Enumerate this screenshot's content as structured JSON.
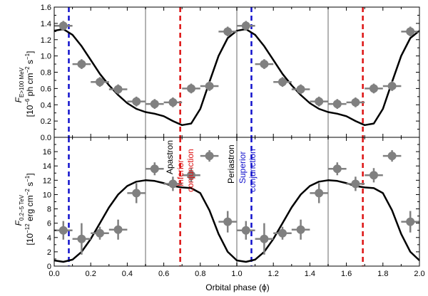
{
  "figure_title": "",
  "chart_data": [
    {
      "type": "scatter",
      "panel": "top",
      "ylabel_line1": "F",
      "ylabel_sub": "E>100 MeV",
      "ylabel_line2": "[10",
      "ylabel_exp": "−6",
      "ylabel_units": "ph cm",
      "ylabel_units_exp": "−2",
      "ylabel_units2": "s",
      "ylabel_units2_exp": "−1",
      "ylabel_close": "]",
      "xlim": [
        0.0,
        2.0
      ],
      "ylim": [
        0.0,
        1.6
      ],
      "yticks": [
        "0.0",
        "0.2",
        "0.4",
        "0.6",
        "0.8",
        "1.0",
        "1.2",
        "1.4",
        "1.6"
      ],
      "yticks_values": [
        0.0,
        0.2,
        0.4,
        0.6,
        0.8,
        1.0,
        1.2,
        1.4,
        1.6
      ],
      "points": [
        {
          "x": 0.05,
          "y": 1.37,
          "xerr": 0.05,
          "yerr": 0.06
        },
        {
          "x": 0.15,
          "y": 0.9,
          "xerr": 0.05,
          "yerr": 0.06
        },
        {
          "x": 0.25,
          "y": 0.68,
          "xerr": 0.05,
          "yerr": 0.06
        },
        {
          "x": 0.35,
          "y": 0.59,
          "xerr": 0.05,
          "yerr": 0.06
        },
        {
          "x": 0.45,
          "y": 0.44,
          "xerr": 0.05,
          "yerr": 0.06
        },
        {
          "x": 0.55,
          "y": 0.41,
          "xerr": 0.05,
          "yerr": 0.06
        },
        {
          "x": 0.65,
          "y": 0.43,
          "xerr": 0.05,
          "yerr": 0.06
        },
        {
          "x": 0.75,
          "y": 0.6,
          "xerr": 0.05,
          "yerr": 0.06
        },
        {
          "x": 0.85,
          "y": 0.63,
          "xerr": 0.05,
          "yerr": 0.06
        },
        {
          "x": 0.95,
          "y": 1.3,
          "xerr": 0.05,
          "yerr": 0.06
        },
        {
          "x": 1.05,
          "y": 1.37,
          "xerr": 0.05,
          "yerr": 0.06
        },
        {
          "x": 1.15,
          "y": 0.9,
          "xerr": 0.05,
          "yerr": 0.06
        },
        {
          "x": 1.25,
          "y": 0.68,
          "xerr": 0.05,
          "yerr": 0.06
        },
        {
          "x": 1.35,
          "y": 0.59,
          "xerr": 0.05,
          "yerr": 0.06
        },
        {
          "x": 1.45,
          "y": 0.44,
          "xerr": 0.05,
          "yerr": 0.06
        },
        {
          "x": 1.55,
          "y": 0.41,
          "xerr": 0.05,
          "yerr": 0.06
        },
        {
          "x": 1.65,
          "y": 0.43,
          "xerr": 0.05,
          "yerr": 0.06
        },
        {
          "x": 1.75,
          "y": 0.6,
          "xerr": 0.05,
          "yerr": 0.06
        },
        {
          "x": 1.85,
          "y": 0.63,
          "xerr": 0.05,
          "yerr": 0.06
        },
        {
          "x": 1.95,
          "y": 1.3,
          "xerr": 0.05,
          "yerr": 0.06
        }
      ],
      "curve": [
        {
          "x": 0.0,
          "y": 1.31
        },
        {
          "x": 0.05,
          "y": 1.33
        },
        {
          "x": 0.1,
          "y": 1.26
        },
        {
          "x": 0.15,
          "y": 1.12
        },
        {
          "x": 0.2,
          "y": 0.95
        },
        {
          "x": 0.25,
          "y": 0.78
        },
        {
          "x": 0.3,
          "y": 0.64
        },
        {
          "x": 0.35,
          "y": 0.52
        },
        {
          "x": 0.4,
          "y": 0.42
        },
        {
          "x": 0.45,
          "y": 0.35
        },
        {
          "x": 0.5,
          "y": 0.31
        },
        {
          "x": 0.55,
          "y": 0.29
        },
        {
          "x": 0.6,
          "y": 0.26
        },
        {
          "x": 0.65,
          "y": 0.2
        },
        {
          "x": 0.7,
          "y": 0.15
        },
        {
          "x": 0.75,
          "y": 0.17
        },
        {
          "x": 0.8,
          "y": 0.35
        },
        {
          "x": 0.85,
          "y": 0.68
        },
        {
          "x": 0.9,
          "y": 1.0
        },
        {
          "x": 0.95,
          "y": 1.22
        },
        {
          "x": 1.0,
          "y": 1.31
        },
        {
          "x": 1.05,
          "y": 1.33
        },
        {
          "x": 1.1,
          "y": 1.26
        },
        {
          "x": 1.15,
          "y": 1.12
        },
        {
          "x": 1.2,
          "y": 0.95
        },
        {
          "x": 1.25,
          "y": 0.78
        },
        {
          "x": 1.3,
          "y": 0.64
        },
        {
          "x": 1.35,
          "y": 0.52
        },
        {
          "x": 1.4,
          "y": 0.42
        },
        {
          "x": 1.45,
          "y": 0.35
        },
        {
          "x": 1.5,
          "y": 0.31
        },
        {
          "x": 1.55,
          "y": 0.29
        },
        {
          "x": 1.6,
          "y": 0.26
        },
        {
          "x": 1.65,
          "y": 0.2
        },
        {
          "x": 1.7,
          "y": 0.15
        },
        {
          "x": 1.75,
          "y": 0.17
        },
        {
          "x": 1.8,
          "y": 0.35
        },
        {
          "x": 1.85,
          "y": 0.68
        },
        {
          "x": 1.9,
          "y": 1.0
        },
        {
          "x": 1.95,
          "y": 1.22
        },
        {
          "x": 2.0,
          "y": 1.31
        }
      ]
    },
    {
      "type": "scatter",
      "panel": "bottom",
      "ylabel_line1": "F",
      "ylabel_sub": "0.2−5 TeV",
      "ylabel_line2": "[10",
      "ylabel_exp": "−12",
      "ylabel_units": "erg cm",
      "ylabel_units_exp": "−2",
      "ylabel_units2": "s",
      "ylabel_units2_exp": "−1",
      "ylabel_close": "]",
      "xlabel": "Orbital phase (ϕ)",
      "xlim": [
        0.0,
        2.0
      ],
      "ylim": [
        0,
        18
      ],
      "xticks": [
        "0.0",
        "0.2",
        "0.4",
        "0.6",
        "0.8",
        "1.0",
        "1.2",
        "1.4",
        "1.6",
        "1.8",
        "2.0"
      ],
      "xticks_values": [
        0.0,
        0.2,
        0.4,
        0.6,
        0.8,
        1.0,
        1.2,
        1.4,
        1.6,
        1.8,
        2.0
      ],
      "yticks": [
        "0",
        "2",
        "4",
        "6",
        "8",
        "10",
        "12",
        "14",
        "16"
      ],
      "yticks_values": [
        0,
        2,
        4,
        6,
        8,
        10,
        12,
        14,
        16
      ],
      "points": [
        {
          "x": 0.05,
          "y": 5.0,
          "xerr": 0.05,
          "yerr": 1.3
        },
        {
          "x": 0.15,
          "y": 3.8,
          "xerr": 0.05,
          "yerr": 2.2
        },
        {
          "x": 0.25,
          "y": 4.6,
          "xerr": 0.05,
          "yerr": 0.9
        },
        {
          "x": 0.35,
          "y": 5.1,
          "xerr": 0.05,
          "yerr": 1.4
        },
        {
          "x": 0.45,
          "y": 10.2,
          "xerr": 0.05,
          "yerr": 1.4
        },
        {
          "x": 0.55,
          "y": 13.6,
          "xerr": 0.05,
          "yerr": 0.9
        },
        {
          "x": 0.65,
          "y": 11.5,
          "xerr": 0.05,
          "yerr": 1.0
        },
        {
          "x": 0.75,
          "y": 12.7,
          "xerr": 0.05,
          "yerr": 1.0
        },
        {
          "x": 0.85,
          "y": 15.4,
          "xerr": 0.05,
          "yerr": 0.8
        },
        {
          "x": 0.95,
          "y": 6.2,
          "xerr": 0.05,
          "yerr": 1.5
        },
        {
          "x": 1.05,
          "y": 5.0,
          "xerr": 0.05,
          "yerr": 1.3
        },
        {
          "x": 1.15,
          "y": 3.8,
          "xerr": 0.05,
          "yerr": 2.2
        },
        {
          "x": 1.25,
          "y": 4.6,
          "xerr": 0.05,
          "yerr": 0.9
        },
        {
          "x": 1.35,
          "y": 5.1,
          "xerr": 0.05,
          "yerr": 1.4
        },
        {
          "x": 1.45,
          "y": 10.2,
          "xerr": 0.05,
          "yerr": 1.4
        },
        {
          "x": 1.55,
          "y": 13.6,
          "xerr": 0.05,
          "yerr": 0.9
        },
        {
          "x": 1.65,
          "y": 11.5,
          "xerr": 0.05,
          "yerr": 1.0
        },
        {
          "x": 1.75,
          "y": 12.7,
          "xerr": 0.05,
          "yerr": 1.0
        },
        {
          "x": 1.85,
          "y": 15.4,
          "xerr": 0.05,
          "yerr": 0.8
        },
        {
          "x": 1.95,
          "y": 6.2,
          "xerr": 0.05,
          "yerr": 1.5
        }
      ],
      "curve": [
        {
          "x": 0.0,
          "y": 0.8
        },
        {
          "x": 0.05,
          "y": 0.6
        },
        {
          "x": 0.1,
          "y": 0.9
        },
        {
          "x": 0.15,
          "y": 2.0
        },
        {
          "x": 0.2,
          "y": 3.8
        },
        {
          "x": 0.25,
          "y": 6.0
        },
        {
          "x": 0.3,
          "y": 8.2
        },
        {
          "x": 0.35,
          "y": 10.0
        },
        {
          "x": 0.4,
          "y": 11.2
        },
        {
          "x": 0.45,
          "y": 11.8
        },
        {
          "x": 0.5,
          "y": 12.0
        },
        {
          "x": 0.55,
          "y": 11.9
        },
        {
          "x": 0.6,
          "y": 11.6
        },
        {
          "x": 0.65,
          "y": 11.2
        },
        {
          "x": 0.7,
          "y": 11.0
        },
        {
          "x": 0.75,
          "y": 10.9
        },
        {
          "x": 0.8,
          "y": 10.2
        },
        {
          "x": 0.85,
          "y": 7.8
        },
        {
          "x": 0.9,
          "y": 4.5
        },
        {
          "x": 0.95,
          "y": 2.0
        },
        {
          "x": 1.0,
          "y": 0.8
        },
        {
          "x": 1.05,
          "y": 0.6
        },
        {
          "x": 1.1,
          "y": 0.9
        },
        {
          "x": 1.15,
          "y": 2.0
        },
        {
          "x": 1.2,
          "y": 3.8
        },
        {
          "x": 1.25,
          "y": 6.0
        },
        {
          "x": 1.3,
          "y": 8.2
        },
        {
          "x": 1.35,
          "y": 10.0
        },
        {
          "x": 1.4,
          "y": 11.2
        },
        {
          "x": 1.45,
          "y": 11.8
        },
        {
          "x": 1.5,
          "y": 12.0
        },
        {
          "x": 1.55,
          "y": 11.9
        },
        {
          "x": 1.6,
          "y": 11.6
        },
        {
          "x": 1.65,
          "y": 11.2
        },
        {
          "x": 1.7,
          "y": 11.0
        },
        {
          "x": 1.75,
          "y": 10.9
        },
        {
          "x": 1.8,
          "y": 10.2
        },
        {
          "x": 1.85,
          "y": 7.8
        },
        {
          "x": 1.9,
          "y": 4.5
        },
        {
          "x": 1.95,
          "y": 2.0
        },
        {
          "x": 2.0,
          "y": 0.8
        }
      ]
    }
  ],
  "markers": {
    "gray_lines": [
      0.5,
      1.0,
      1.5
    ],
    "red_dashed": [
      0.69,
      1.69
    ],
    "blue_dashed": [
      0.08,
      1.08
    ],
    "labels": {
      "apastron": "Apastron",
      "inferior_1": "Inferior",
      "inferior_2": "conjunction",
      "periastron": "Periastron",
      "superior_1": "Superior",
      "superior_2": "conjunction"
    }
  },
  "colors": {
    "point": "#808080",
    "curve": "#000000",
    "gray_line": "#b3b3b3",
    "red": "#dd1111",
    "blue": "#1111cc",
    "axis": "#000000"
  }
}
